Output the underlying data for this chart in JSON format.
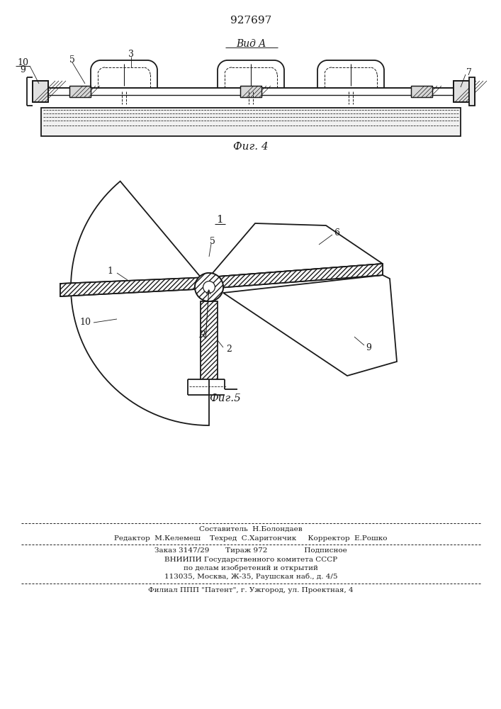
{
  "patent_number": "927697",
  "fig4_label": "Фиг. 4",
  "vid_a_label": "Вид A",
  "fig5_label": "Фиг.5",
  "footer_lines": [
    "Составитель  Н.Болондаев",
    "Редактор  М.Келемеш    Техред  С.Харитончик     Корректор  Е.Рошко",
    "Заказ 3147/29       Тираж 972                Подписное",
    "ВНИИПИ Государственного комитета СССР",
    "по делам изобретений и открытий",
    "113035, Москва, Ж-35, Раушская наб., д. 4/5",
    "Филиал ППП \"Патент\", г. Ужгород, ул. Проектная, 4"
  ],
  "bg_color": "#ffffff",
  "line_color": "#1a1a1a"
}
